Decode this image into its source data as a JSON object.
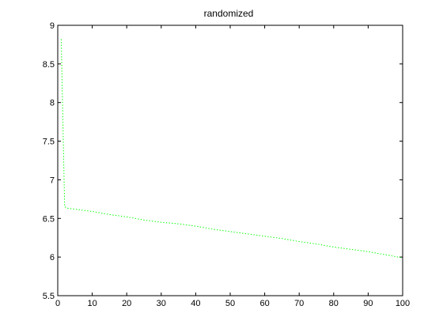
{
  "chart_data": {
    "type": "line",
    "title": "randomized",
    "xlabel": "",
    "ylabel": "",
    "xlim": [
      0,
      100
    ],
    "ylim": [
      5.5,
      9
    ],
    "xticks": [
      "0",
      "10",
      "20",
      "30",
      "40",
      "50",
      "60",
      "70",
      "80",
      "90",
      "100"
    ],
    "yticks": [
      "5.5",
      "6",
      "6.5",
      "7",
      "7.5",
      "8",
      "8.5",
      "9"
    ],
    "grid": false,
    "legend": "none",
    "series": [
      {
        "line_style": "dotted",
        "color": "#00ff00",
        "x": [
          1,
          2,
          3,
          5,
          10,
          15,
          20,
          25,
          30,
          35,
          40,
          45,
          50,
          55,
          60,
          65,
          70,
          75,
          80,
          85,
          90,
          95,
          100
        ],
        "y": [
          8.82,
          6.65,
          6.63,
          6.62,
          6.59,
          6.55,
          6.52,
          6.48,
          6.45,
          6.43,
          6.4,
          6.36,
          6.33,
          6.3,
          6.27,
          6.24,
          6.2,
          6.17,
          6.13,
          6.1,
          6.07,
          6.03,
          5.99
        ]
      }
    ]
  }
}
